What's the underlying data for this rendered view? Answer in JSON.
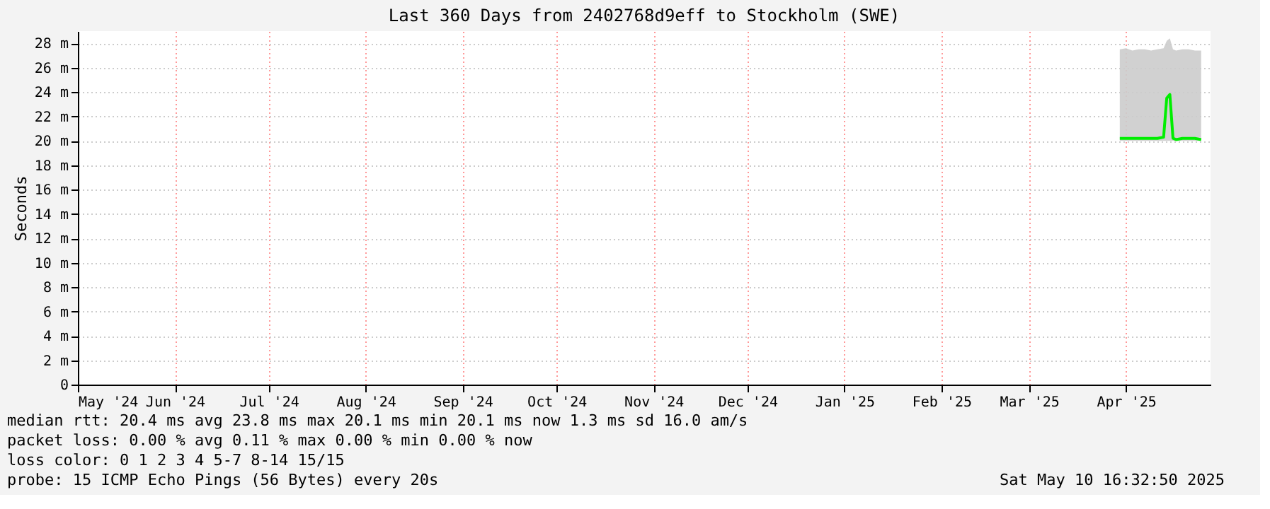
{
  "chart_data": {
    "type": "line",
    "title": "Last 360 Days from 2402768d9eff to Stockholm (SWE)",
    "ylabel": "Seconds",
    "x": [
      "2025-04-13",
      "2025-04-15",
      "2025-04-17",
      "2025-04-19",
      "2025-04-21",
      "2025-04-23",
      "2025-04-25",
      "2025-04-27",
      "2025-04-28",
      "2025-04-29",
      "2025-04-30",
      "2025-05-01",
      "2025-05-03",
      "2025-05-05",
      "2025-05-07",
      "2025-05-09"
    ],
    "series": [
      {
        "color": "#00ee00",
        "values": [
          20.2,
          20.2,
          20.2,
          20.2,
          20.2,
          20.2,
          20.2,
          20.3,
          23.5,
          23.8,
          20.2,
          20.1,
          20.2,
          20.2,
          20.2,
          20.1
        ],
        "lower": [
          20.0,
          20.0,
          20.0,
          20.0,
          20.0,
          20.0,
          20.0,
          20.0,
          20.0,
          20.0,
          20.0,
          20.0,
          20.0,
          20.0,
          20.0,
          20.0
        ],
        "upper": [
          27.5,
          27.6,
          27.4,
          27.5,
          27.5,
          27.4,
          27.5,
          27.6,
          28.2,
          28.4,
          27.5,
          27.4,
          27.5,
          27.5,
          27.4,
          27.4
        ]
      }
    ],
    "xlim": [
      "2024-05-15",
      "2025-05-12"
    ],
    "xticks": [
      {
        "value": "2024-05-15",
        "label": "May '24"
      },
      {
        "value": "2024-06-15",
        "label": "Jun '24"
      },
      {
        "value": "2024-07-15",
        "label": "Jul '24"
      },
      {
        "value": "2024-08-15",
        "label": "Aug '24"
      },
      {
        "value": "2024-09-15",
        "label": "Sep '24"
      },
      {
        "value": "2024-10-15",
        "label": "Oct '24"
      },
      {
        "value": "2024-11-15",
        "label": "Nov '24"
      },
      {
        "value": "2024-12-15",
        "label": "Dec '24"
      },
      {
        "value": "2025-01-15",
        "label": "Jan '25"
      },
      {
        "value": "2025-02-15",
        "label": "Feb '25"
      },
      {
        "value": "2025-03-15",
        "label": "Mar '25"
      },
      {
        "value": "2025-04-15",
        "label": "Apr '25"
      }
    ],
    "ylim": [
      0,
      29
    ],
    "yticks": [
      0,
      {
        "value": 2,
        "label": "2 m"
      },
      {
        "value": 4,
        "label": "4 m"
      },
      {
        "value": 6,
        "label": "6 m"
      },
      {
        "value": 8,
        "label": "8 m"
      },
      {
        "value": 10,
        "label": "10 m"
      },
      {
        "value": 12,
        "label": "12 m"
      },
      {
        "value": 14,
        "label": "14 m"
      },
      {
        "value": 16,
        "label": "16 m"
      },
      {
        "value": 18,
        "label": "18 m"
      },
      {
        "value": 20,
        "label": "20 m"
      },
      {
        "value": 22,
        "label": "22 m"
      },
      {
        "value": 24,
        "label": "24 m"
      },
      {
        "value": 26,
        "label": "26 m"
      },
      {
        "value": 28,
        "label": "28 m"
      }
    ],
    "grid": true,
    "annotations": [
      "median rtt:  20.4 ms avg  23.8 ms max  20.1 ms min  20.1 ms now  1.3 ms sd  16.0   am/s",
      "packet loss: 0.00 % avg  0.11 % max  0.00 % min  0.00 % now",
      "loss color:  0  1  2  3  4  5-7  8-14  15/15",
      "probe:       15 ICMP Echo Pings (56 Bytes) every 20s",
      "Sat May 10 16:32:50 2025"
    ]
  }
}
